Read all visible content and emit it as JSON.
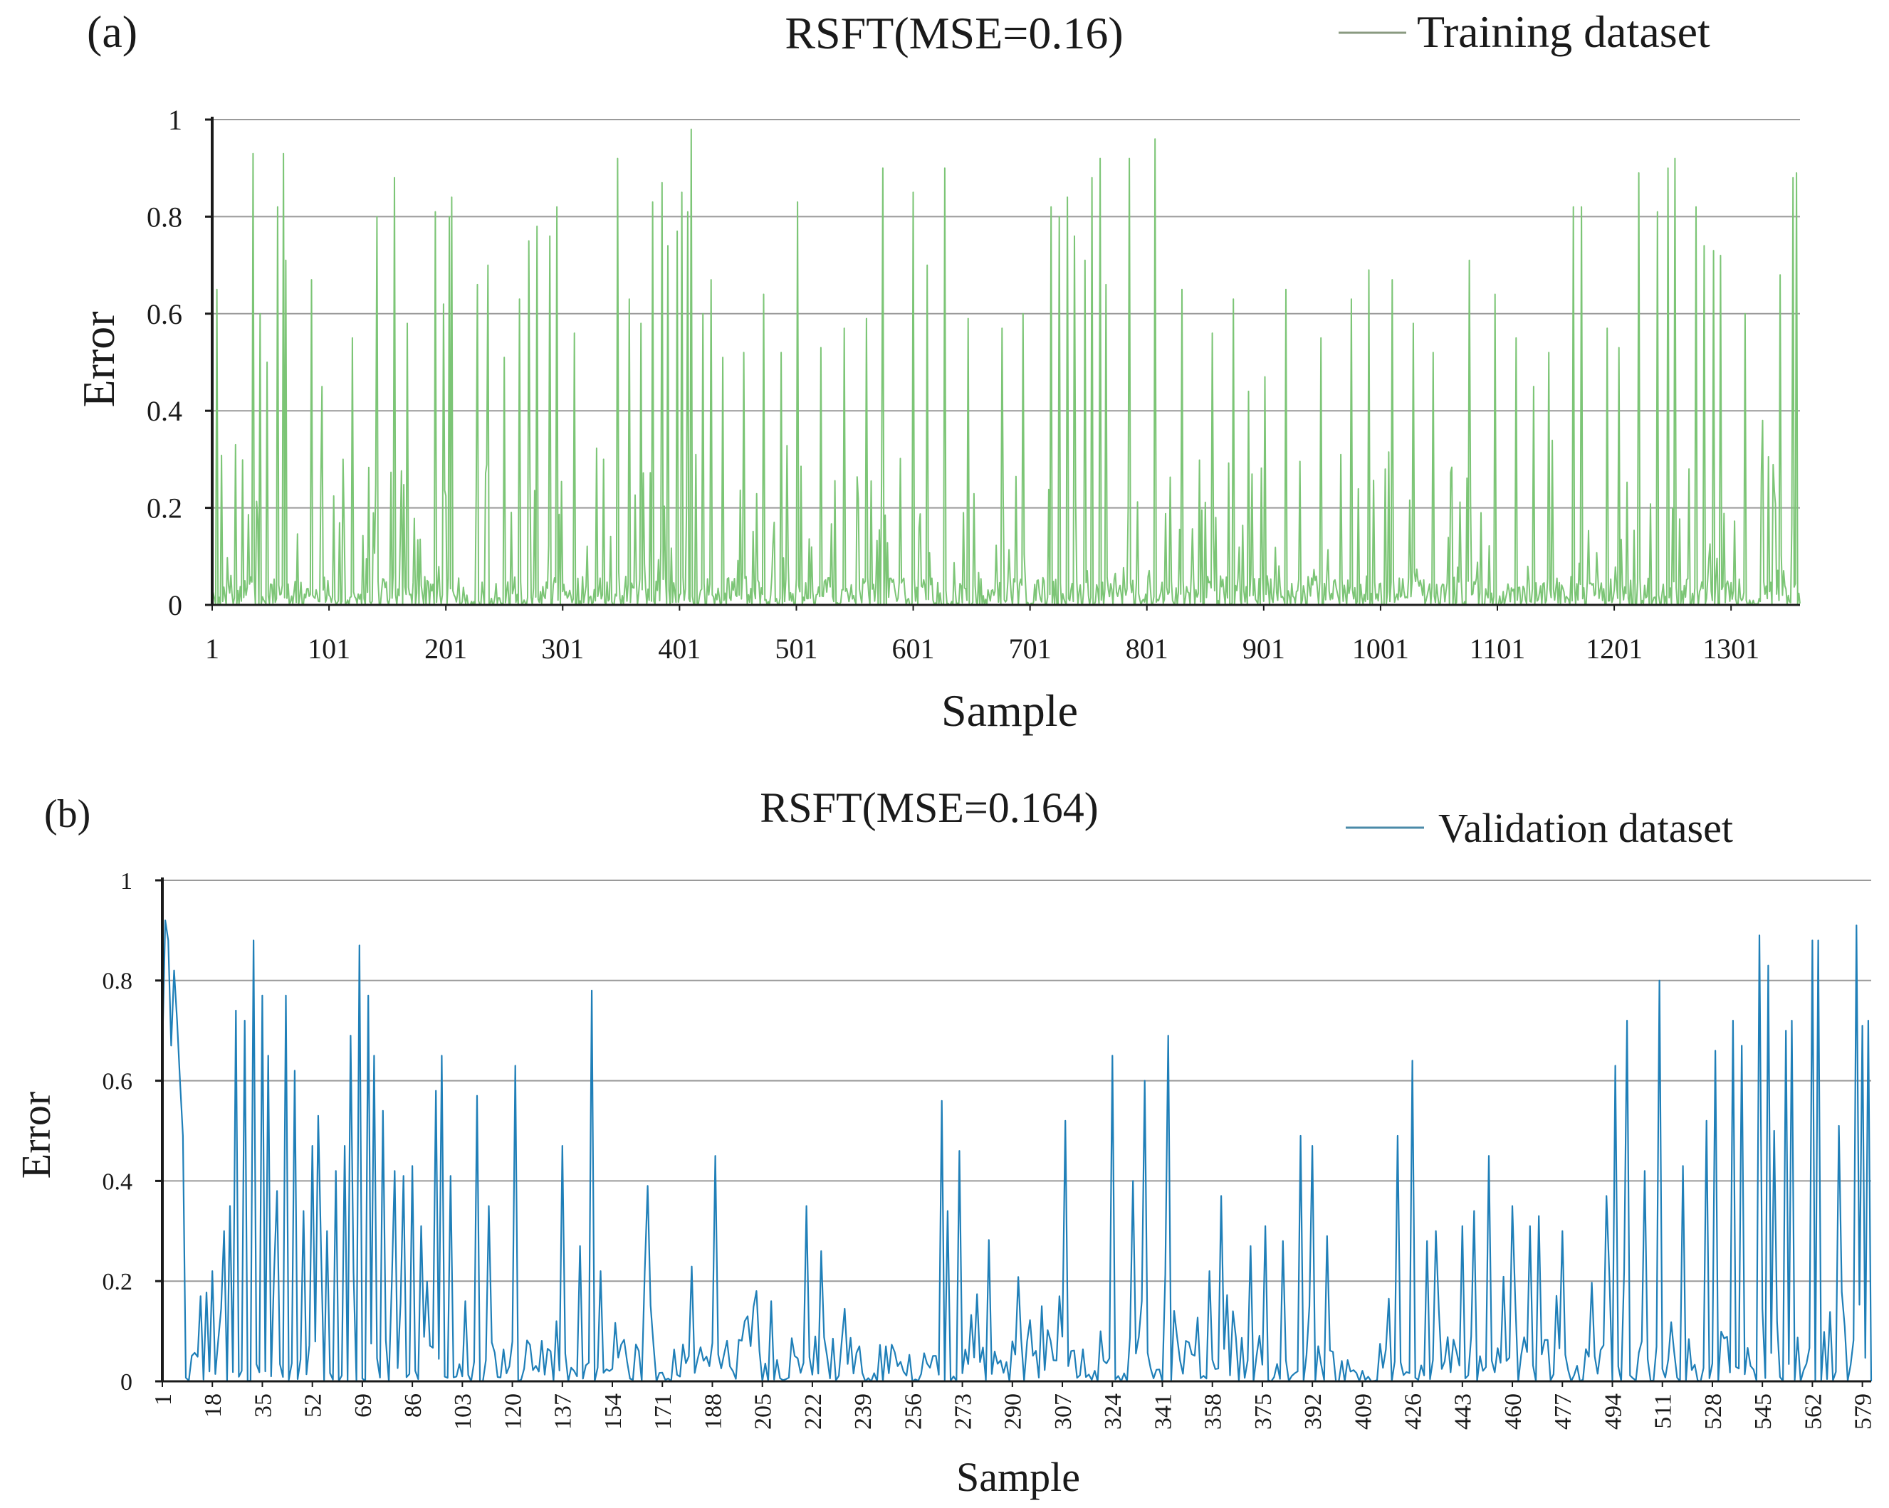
{
  "chart_data": [
    {
      "panel_label": "(a)",
      "type": "line",
      "title": "RSFT(MSE=0.16)",
      "legend": "Training dataset",
      "legend_position": "top-right",
      "xlabel": "Sample",
      "ylabel": "Error",
      "ylim": [
        0,
        1
      ],
      "yticks": [
        "0",
        "0.2",
        "0.4",
        "0.6",
        "0.8",
        "1"
      ],
      "x_range": [
        1,
        1360
      ],
      "xticks": [
        "1",
        "101",
        "201",
        "301",
        "401",
        "501",
        "601",
        "701",
        "801",
        "901",
        "1001",
        "1101",
        "1201",
        "1301"
      ],
      "grid": true,
      "color": "#7cc576",
      "legend_color": "#8a9a80",
      "series": [
        {
          "name": "Training dataset",
          "peaks": [
            [
              5,
              0.65
            ],
            [
              21,
              0.33
            ],
            [
              36,
              0.93
            ],
            [
              42,
              0.6
            ],
            [
              48,
              0.5
            ],
            [
              57,
              0.82
            ],
            [
              62,
              0.93
            ],
            [
              64,
              0.71
            ],
            [
              86,
              0.67
            ],
            [
              95,
              0.45
            ],
            [
              113,
              0.3
            ],
            [
              121,
              0.55
            ],
            [
              142,
              0.8
            ],
            [
              157,
              0.88
            ],
            [
              168,
              0.58
            ],
            [
              192,
              0.81
            ],
            [
              199,
              0.62
            ],
            [
              204,
              0.8
            ],
            [
              206,
              0.84
            ],
            [
              228,
              0.66
            ],
            [
              237,
              0.7
            ],
            [
              251,
              0.51
            ],
            [
              264,
              0.63
            ],
            [
              272,
              0.75
            ],
            [
              279,
              0.78
            ],
            [
              290,
              0.76
            ],
            [
              296,
              0.82
            ],
            [
              311,
              0.56
            ],
            [
              348,
              0.92
            ],
            [
              358,
              0.63
            ],
            [
              368,
              0.58
            ],
            [
              378,
              0.83
            ],
            [
              386,
              0.87
            ],
            [
              391,
              0.74
            ],
            [
              399,
              0.77
            ],
            [
              403,
              0.85
            ],
            [
              408,
              0.81
            ],
            [
              411,
              0.98
            ],
            [
              421,
              0.6
            ],
            [
              428,
              0.67
            ],
            [
              438,
              0.51
            ],
            [
              456,
              0.52
            ],
            [
              473,
              0.64
            ],
            [
              488,
              0.52
            ],
            [
              502,
              0.83
            ],
            [
              522,
              0.53
            ],
            [
              542,
              0.57
            ],
            [
              561,
              0.59
            ],
            [
              575,
              0.9
            ],
            [
              601,
              0.85
            ],
            [
              613,
              0.7
            ],
            [
              628,
              0.9
            ],
            [
              648,
              0.59
            ],
            [
              677,
              0.57
            ],
            [
              695,
              0.6
            ],
            [
              719,
              0.82
            ],
            [
              726,
              0.8
            ],
            [
              733,
              0.84
            ],
            [
              739,
              0.76
            ],
            [
              748,
              0.71
            ],
            [
              754,
              0.88
            ],
            [
              761,
              0.92
            ],
            [
              766,
              0.66
            ],
            [
              786,
              0.92
            ],
            [
              808,
              0.96
            ],
            [
              831,
              0.65
            ],
            [
              857,
              0.56
            ],
            [
              875,
              0.63
            ],
            [
              888,
              0.44
            ],
            [
              902,
              0.47
            ],
            [
              920,
              0.65
            ],
            [
              950,
              0.55
            ],
            [
              976,
              0.63
            ],
            [
              991,
              0.69
            ],
            [
              1011,
              0.67
            ],
            [
              1029,
              0.58
            ],
            [
              1046,
              0.52
            ],
            [
              1077,
              0.71
            ],
            [
              1099,
              0.64
            ],
            [
              1117,
              0.55
            ],
            [
              1132,
              0.45
            ],
            [
              1145,
              0.52
            ],
            [
              1166,
              0.82
            ],
            [
              1173,
              0.82
            ],
            [
              1195,
              0.57
            ],
            [
              1205,
              0.53
            ],
            [
              1222,
              0.89
            ],
            [
              1238,
              0.81
            ],
            [
              1247,
              0.9
            ],
            [
              1253,
              0.92
            ],
            [
              1271,
              0.82
            ],
            [
              1278,
              0.74
            ],
            [
              1286,
              0.73
            ],
            [
              1292,
              0.72
            ],
            [
              1313,
              0.6
            ],
            [
              1328,
              0.38
            ],
            [
              1343,
              0.68
            ],
            [
              1354,
              0.88
            ],
            [
              1357,
              0.89
            ]
          ]
        }
      ]
    },
    {
      "panel_label": "(b)",
      "type": "line",
      "title": "RSFT(MSE=0.164)",
      "legend": "Validation dataset",
      "legend_position": "top-right",
      "xlabel": "Sample",
      "ylabel": "Error",
      "ylim": [
        0,
        1
      ],
      "yticks": [
        "0",
        "0.2",
        "0.4",
        "0.6",
        "0.8",
        "1"
      ],
      "x_range": [
        1,
        582
      ],
      "xticks": [
        "1",
        "18",
        "35",
        "52",
        "69",
        "86",
        "103",
        "120",
        "137",
        "154",
        "171",
        "188",
        "205",
        "222",
        "239",
        "256",
        "273",
        "290",
        "307",
        "324",
        "341",
        "358",
        "375",
        "392",
        "409",
        "426",
        "443",
        "460",
        "477",
        "494",
        "511",
        "528",
        "545",
        "562",
        "579"
      ],
      "grid": true,
      "color": "#1f7fb8",
      "legend_color": "#4a8aa8",
      "series": [
        {
          "name": "Validation dataset",
          "start_values": [
            0.66,
            0.92,
            0.88,
            0.67,
            0.82,
            0.72,
            0.6,
            0.49
          ],
          "peaks": [
            [
              14,
              0.17
            ],
            [
              18,
              0.22
            ],
            [
              22,
              0.3
            ],
            [
              24,
              0.35
            ],
            [
              26,
              0.74
            ],
            [
              29,
              0.72
            ],
            [
              32,
              0.88
            ],
            [
              35,
              0.77
            ],
            [
              37,
              0.65
            ],
            [
              39,
              0.22
            ],
            [
              40,
              0.38
            ],
            [
              43,
              0.77
            ],
            [
              46,
              0.62
            ],
            [
              49,
              0.34
            ],
            [
              52,
              0.47
            ],
            [
              54,
              0.53
            ],
            [
              57,
              0.3
            ],
            [
              60,
              0.42
            ],
            [
              63,
              0.47
            ],
            [
              65,
              0.69
            ],
            [
              68,
              0.87
            ],
            [
              71,
              0.77
            ],
            [
              73,
              0.65
            ],
            [
              76,
              0.54
            ],
            [
              80,
              0.42
            ],
            [
              83,
              0.41
            ],
            [
              86,
              0.43
            ],
            [
              89,
              0.31
            ],
            [
              94,
              0.58
            ],
            [
              96,
              0.65
            ],
            [
              99,
              0.41
            ],
            [
              104,
              0.16
            ],
            [
              108,
              0.57
            ],
            [
              112,
              0.35
            ],
            [
              121,
              0.63
            ],
            [
              135,
              0.12
            ],
            [
              137,
              0.47
            ],
            [
              143,
              0.27
            ],
            [
              147,
              0.78
            ],
            [
              150,
              0.22
            ],
            [
              166,
              0.39
            ],
            [
              180,
              0.05
            ],
            [
              189,
              0.45
            ],
            [
              200,
              0.13
            ],
            [
              208,
              0.16
            ],
            [
              220,
              0.35
            ],
            [
              225,
              0.26
            ],
            [
              238,
              0.07
            ],
            [
              247,
              0.07
            ],
            [
              266,
              0.56
            ],
            [
              268,
              0.34
            ],
            [
              272,
              0.46
            ],
            [
              290,
              0.08
            ],
            [
              300,
              0.15
            ],
            [
              306,
              0.17
            ],
            [
              308,
              0.52
            ],
            [
              320,
              0.1
            ],
            [
              324,
              0.65
            ],
            [
              331,
              0.4
            ],
            [
              335,
              0.6
            ],
            [
              343,
              0.69
            ],
            [
              357,
              0.22
            ],
            [
              361,
              0.37
            ],
            [
              371,
              0.27
            ],
            [
              376,
              0.31
            ],
            [
              382,
              0.28
            ],
            [
              388,
              0.49
            ],
            [
              392,
              0.47
            ],
            [
              397,
              0.29
            ],
            [
              421,
              0.49
            ],
            [
              426,
              0.64
            ],
            [
              431,
              0.28
            ],
            [
              434,
              0.3
            ],
            [
              443,
              0.31
            ],
            [
              447,
              0.34
            ],
            [
              452,
              0.45
            ],
            [
              460,
              0.35
            ],
            [
              466,
              0.31
            ],
            [
              469,
              0.33
            ],
            [
              477,
              0.3
            ],
            [
              492,
              0.37
            ],
            [
              495,
              0.63
            ],
            [
              499,
              0.72
            ],
            [
              505,
              0.42
            ],
            [
              510,
              0.8
            ],
            [
              518,
              0.43
            ],
            [
              526,
              0.52
            ],
            [
              529,
              0.66
            ],
            [
              535,
              0.72
            ],
            [
              538,
              0.67
            ],
            [
              544,
              0.89
            ],
            [
              547,
              0.83
            ],
            [
              549,
              0.5
            ],
            [
              553,
              0.7
            ],
            [
              555,
              0.72
            ],
            [
              562,
              0.88
            ],
            [
              564,
              0.88
            ],
            [
              571,
              0.51
            ],
            [
              577,
              0.91
            ],
            [
              579,
              0.71
            ],
            [
              581,
              0.72
            ]
          ]
        }
      ]
    }
  ]
}
